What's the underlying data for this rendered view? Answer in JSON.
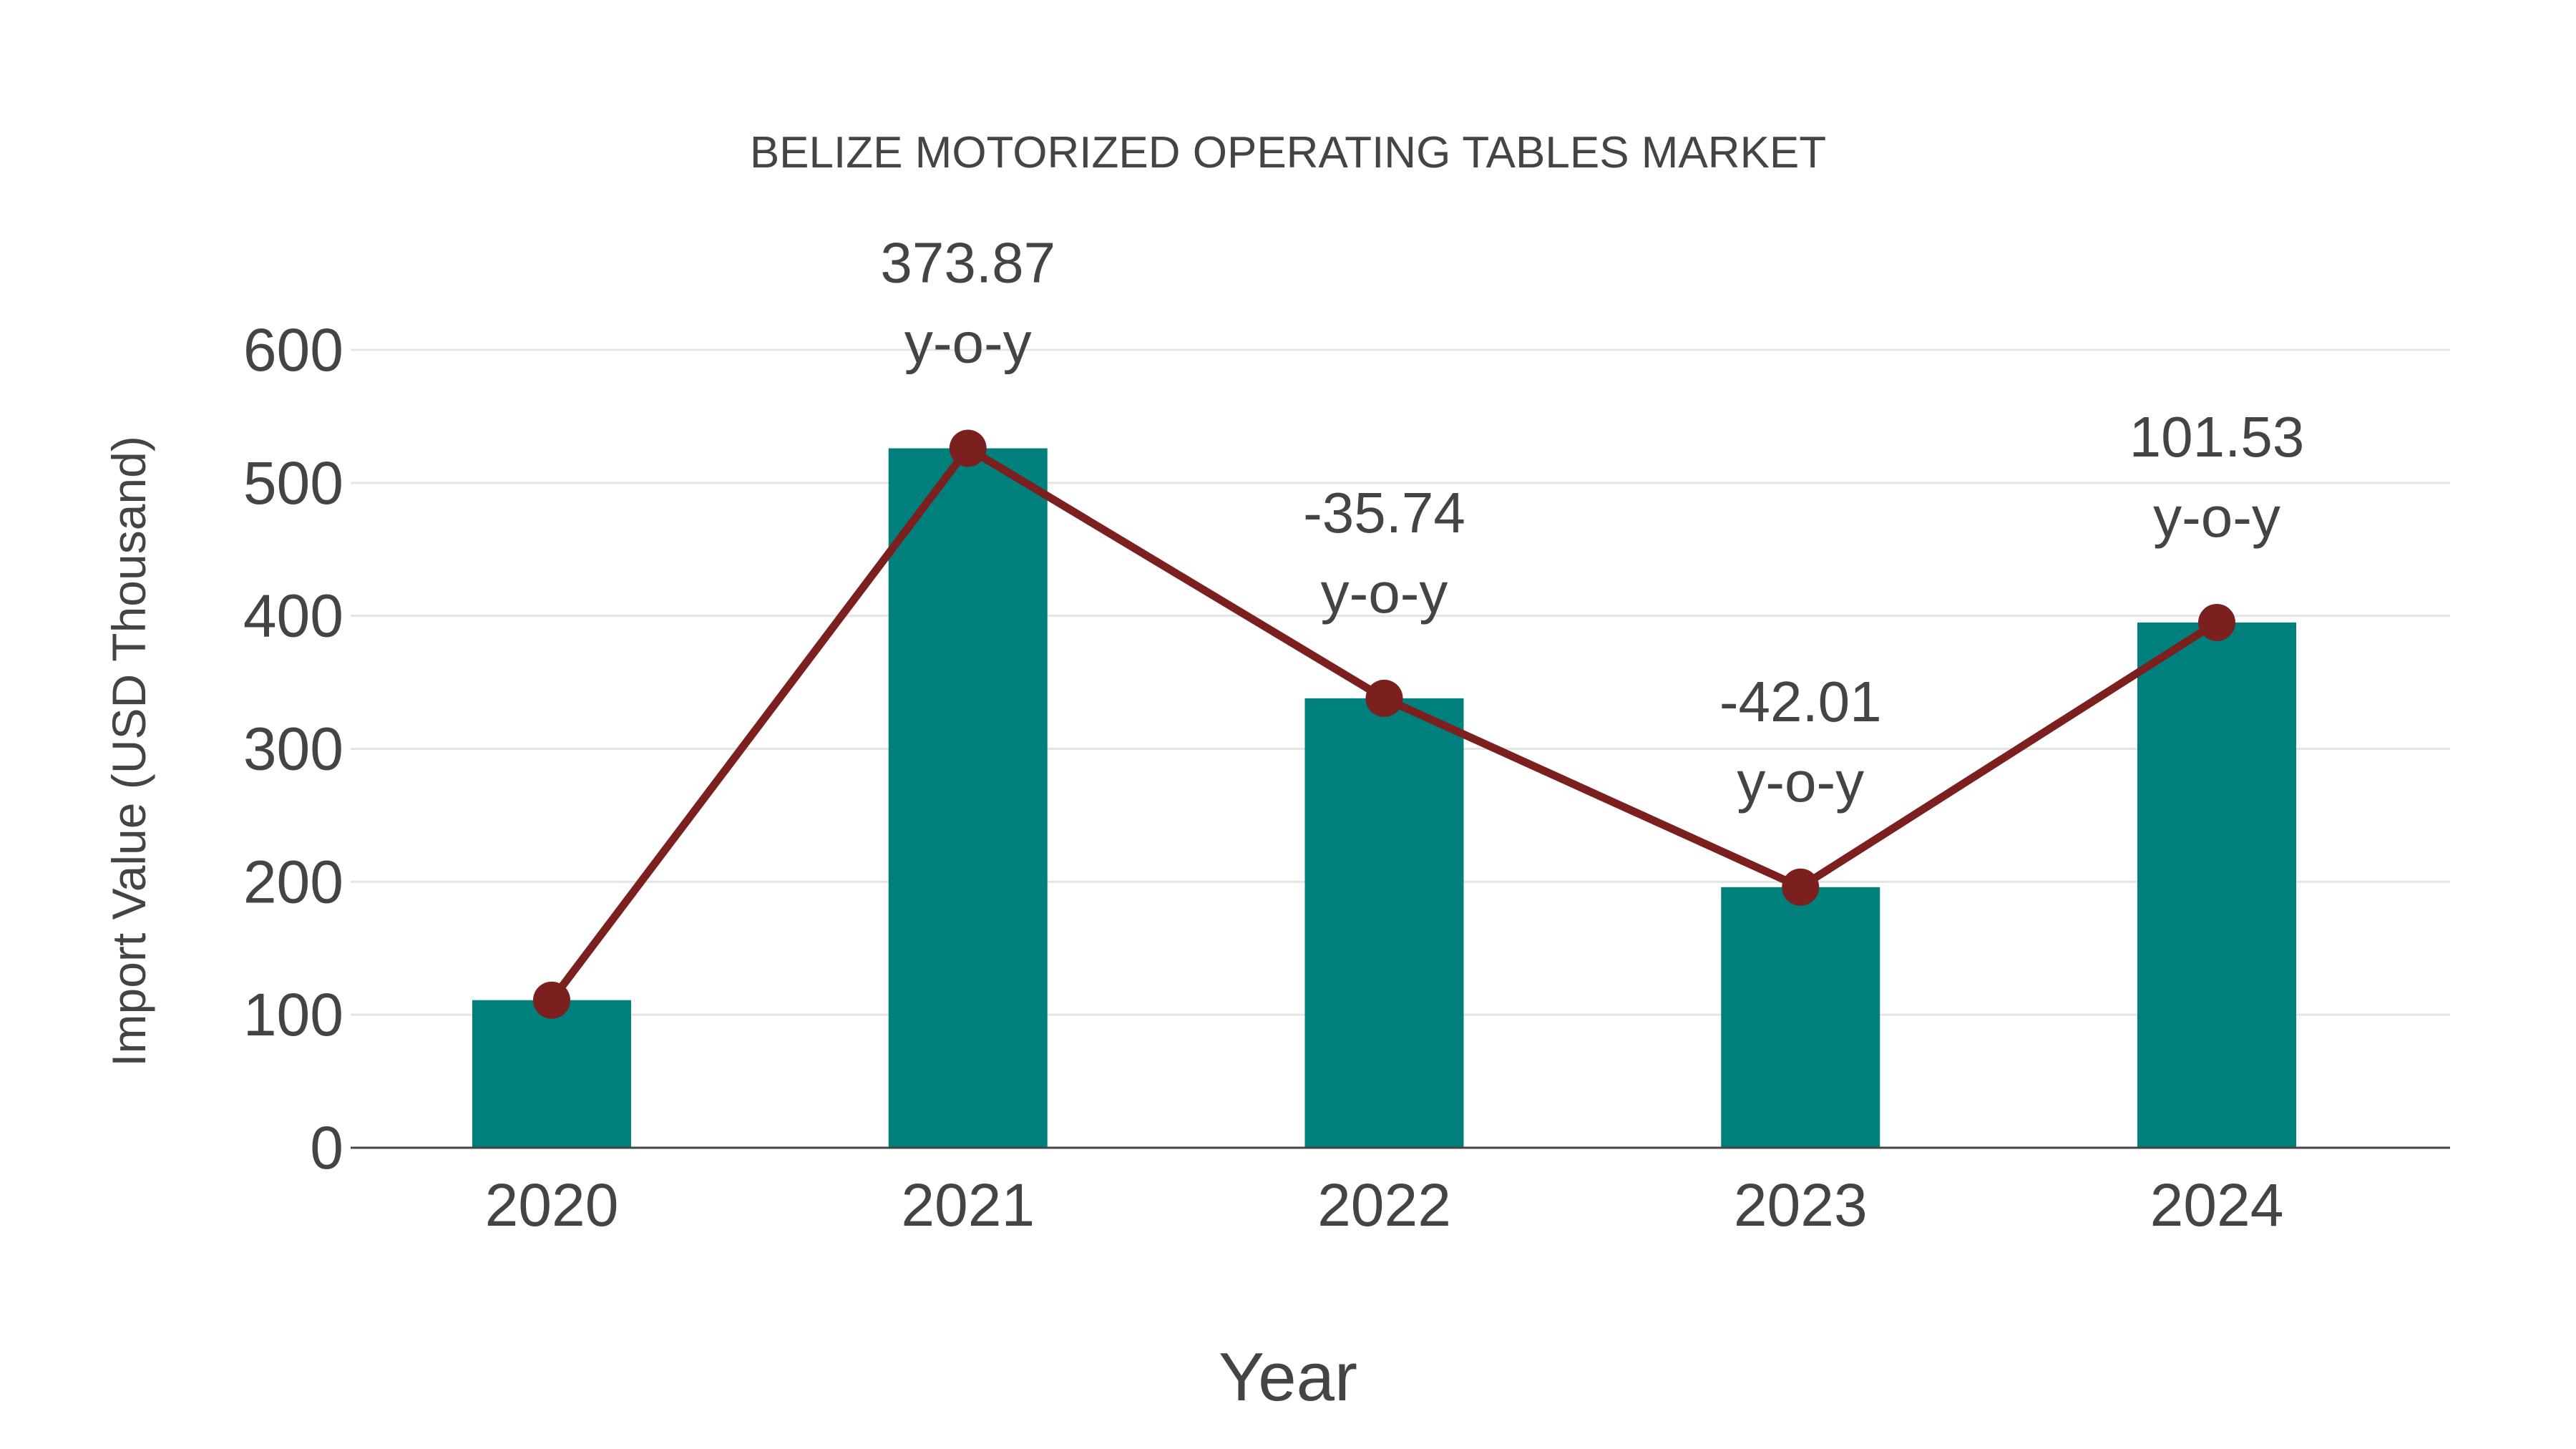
{
  "chart_data": {
    "type": "bar+line",
    "title": "BELIZE MOTORIZED OPERATING TABLES MARKET",
    "xlabel": "Year",
    "ylabel": "Import Value (USD Thousand)",
    "categories": [
      "2020",
      "2021",
      "2022",
      "2023",
      "2024"
    ],
    "series": [
      {
        "name": "Import Value",
        "type": "bar",
        "color": "#00807C",
        "values": [
          111,
          526,
          338,
          196,
          395
        ]
      },
      {
        "name": "Import Value Trend",
        "type": "line",
        "color": "#7B1F1F",
        "values": [
          111,
          526,
          338,
          196,
          395
        ]
      }
    ],
    "annotations": [
      {
        "category": "2021",
        "value": "373.87",
        "suffix": "y-o-y"
      },
      {
        "category": "2022",
        "value": "-35.74",
        "suffix": "y-o-y"
      },
      {
        "category": "2023",
        "value": "-42.01",
        "suffix": "y-o-y"
      },
      {
        "category": "2024",
        "value": "101.53",
        "suffix": "y-o-y"
      }
    ],
    "ylim": [
      0,
      600
    ],
    "yticks": [
      0,
      100,
      200,
      300,
      400,
      500,
      600
    ],
    "grid": true,
    "legend": false
  },
  "colors": {
    "bar": "#00807C",
    "line": "#7B1F1F",
    "text": "#444444",
    "grid": "#E5E5E5",
    "axis": "#444444"
  }
}
